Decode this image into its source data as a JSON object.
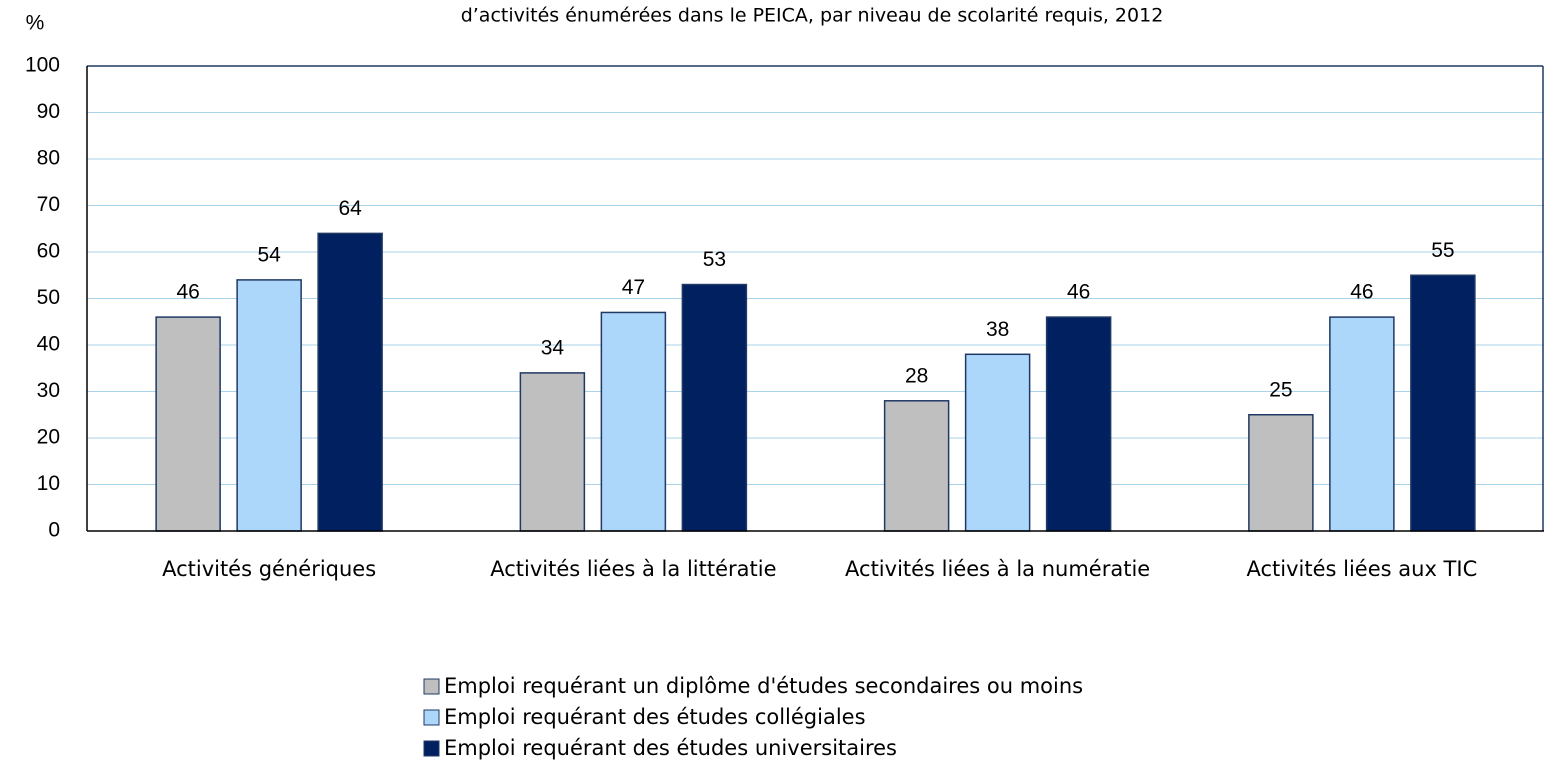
{
  "chart_data": {
    "type": "bar",
    "title": "d’activités énumérées dans le PEICA, par niveau de scolarité requis, 2012",
    "y_label": "%",
    "categories": [
      "Activités génériques",
      "Activités liées à la littératie",
      "Activités liées à la numératie",
      "Activités liées aux TIC"
    ],
    "series": [
      {
        "name": "Emploi requérant un diplôme d'études secondaires ou moins",
        "color": "#bfbfbf",
        "values": [
          46,
          34,
          28,
          25
        ]
      },
      {
        "name": "Emploi requérant des études collégiales",
        "color": "#add6fb",
        "values": [
          54,
          47,
          38,
          46
        ]
      },
      {
        "name": "Emploi requérant des études universitaires",
        "color": "#002060",
        "values": [
          64,
          53,
          46,
          55
        ]
      }
    ],
    "ylim": [
      0,
      100
    ],
    "yticks": [
      0,
      10,
      20,
      30,
      40,
      50,
      60,
      70,
      80,
      90,
      100
    ],
    "grid": true,
    "legend": "bottom"
  }
}
